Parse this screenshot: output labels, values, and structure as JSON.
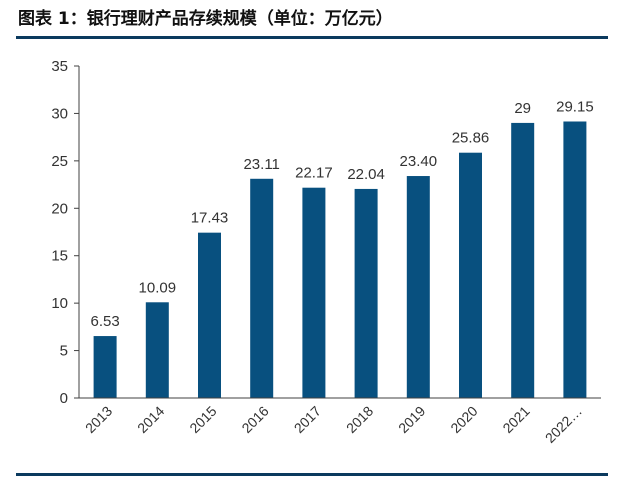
{
  "title": "图表 1：银行理财产品存续规模（单位：万亿元）",
  "colors": {
    "bar": "#08507f",
    "rule": "#0b3a5e",
    "axis": "#404040"
  },
  "chart_data": {
    "type": "bar",
    "title": "图表 1：银行理财产品存续规模（单位：万亿元）",
    "xlabel": "",
    "ylabel": "",
    "categories": [
      "2013",
      "2014",
      "2015",
      "2016",
      "2017",
      "2018",
      "2019",
      "2020",
      "2021",
      "2022…"
    ],
    "values": [
      6.53,
      10.09,
      17.43,
      23.11,
      22.17,
      22.04,
      23.4,
      25.86,
      29,
      29.15
    ],
    "data_labels": [
      "6.53",
      "10.09",
      "17.43",
      "23.11",
      "22.17",
      "22.04",
      "23.40",
      "25.86",
      "29",
      "29.15"
    ],
    "ylim": [
      0,
      35
    ],
    "yticks": [
      "0",
      "5",
      "10",
      "15",
      "20",
      "25",
      "30",
      "35"
    ],
    "grid": false,
    "legend": "none"
  }
}
